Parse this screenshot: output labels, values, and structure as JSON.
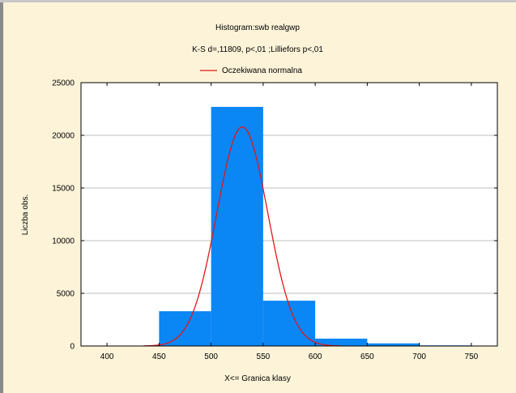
{
  "chart_data": {
    "type": "bar",
    "title": "Histogram:swb realgwp",
    "subtitle": "K-S d=,11809, p<,01 ;Lilliefors p<,01",
    "xlabel": "X<= Granica klasy",
    "ylabel": "Liczba obs.",
    "xlim": [
      375,
      775
    ],
    "ylim": [
      0,
      25000
    ],
    "x_ticks": [
      400,
      450,
      500,
      550,
      600,
      650,
      700,
      750
    ],
    "x_tick_labels": [
      "400",
      "450",
      "500",
      "550",
      "600",
      "650",
      "700",
      "750"
    ],
    "y_ticks": [
      0,
      5000,
      10000,
      15000,
      20000,
      25000
    ],
    "y_tick_labels": [
      "0",
      "5000",
      "10000",
      "15000",
      "20000",
      "25000"
    ],
    "bins": [
      {
        "from": 450,
        "to": 500,
        "value": 3300
      },
      {
        "from": 500,
        "to": 550,
        "value": 22700
      },
      {
        "from": 550,
        "to": 600,
        "value": 4300
      },
      {
        "from": 600,
        "to": 650,
        "value": 700
      },
      {
        "from": 650,
        "to": 700,
        "value": 250
      },
      {
        "from": 700,
        "to": 750,
        "value": 60
      }
    ],
    "expected_normal": {
      "name": "Oczekiwana normalna",
      "mean": 530,
      "sd": 24.5,
      "peak": 20800,
      "x_range": [
        435,
        625
      ]
    },
    "legend_position": "top-center",
    "grid": true,
    "colors": {
      "bars": "#0a86f5",
      "curve": "#e01818",
      "background": "#fcf3d8",
      "plot_background": "#ffffff",
      "grid": "#bfbfbf"
    }
  }
}
